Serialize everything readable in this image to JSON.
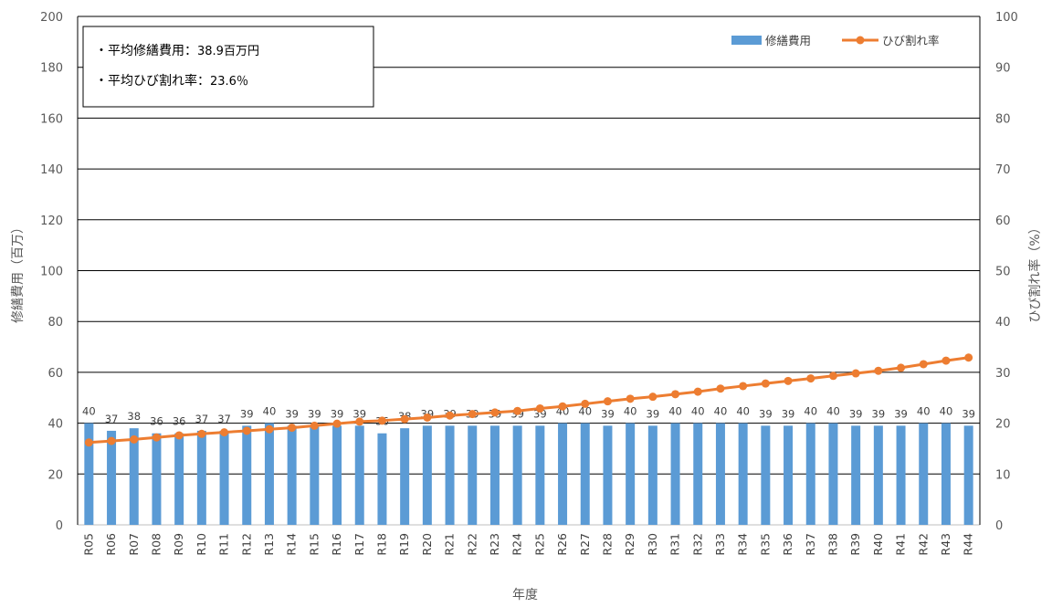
{
  "chart_data": {
    "type": "bar+line",
    "categories": [
      "R05",
      "R06",
      "R07",
      "R08",
      "R09",
      "R10",
      "R11",
      "R12",
      "R13",
      "R14",
      "R15",
      "R16",
      "R17",
      "R18",
      "R19",
      "R20",
      "R21",
      "R22",
      "R23",
      "R24",
      "R25",
      "R26",
      "R27",
      "R28",
      "R29",
      "R30",
      "R31",
      "R32",
      "R33",
      "R34",
      "R35",
      "R36",
      "R37",
      "R38",
      "R39",
      "R40",
      "R41",
      "R42",
      "R43",
      "R44"
    ],
    "series": [
      {
        "name": "修繕費用",
        "type": "bar",
        "axis": "left",
        "color": "#5B9BD5",
        "values": [
          40,
          37,
          38,
          36,
          36,
          37,
          37,
          39,
          40,
          39,
          39,
          39,
          39,
          36,
          38,
          39,
          39,
          39,
          39,
          39,
          39,
          40,
          40,
          39,
          40,
          39,
          40,
          40,
          40,
          40,
          39,
          39,
          40,
          40,
          39,
          39,
          39,
          40,
          40,
          39
        ]
      },
      {
        "name": "ひび割れ率",
        "type": "line",
        "axis": "right",
        "color": "#ED7D31",
        "values": [
          16.2,
          16.5,
          16.8,
          17.2,
          17.6,
          17.9,
          18.2,
          18.5,
          18.8,
          19.1,
          19.5,
          19.9,
          20.3,
          20.5,
          20.8,
          21.1,
          21.5,
          21.8,
          22.1,
          22.4,
          22.9,
          23.3,
          23.8,
          24.3,
          24.8,
          25.2,
          25.7,
          26.2,
          26.8,
          27.3,
          27.8,
          28.3,
          28.8,
          29.3,
          29.8,
          30.3,
          30.9,
          31.6,
          32.3,
          32.9
        ]
      }
    ],
    "xlabel": "年度",
    "ylabel": "修繕費用（百万）",
    "y2label": "ひび割れ率（%）",
    "ylim": [
      0,
      200
    ],
    "y2lim": [
      0,
      100
    ],
    "yticks": [
      0,
      20,
      40,
      60,
      80,
      100,
      120,
      140,
      160,
      180,
      200
    ],
    "y2ticks": [
      0,
      10,
      20,
      30,
      40,
      50,
      60,
      70,
      80,
      90,
      100
    ],
    "grid": true,
    "legend_position": "top-right"
  },
  "annotation": {
    "line1_label": "・平均修繕費用：",
    "line1_value": "38.9百万円",
    "line2_label": "・平均ひび割れ率：",
    "line2_value": "23.6％"
  },
  "legend": {
    "bar_label": "修繕費用",
    "line_label": "ひび割れ率"
  }
}
